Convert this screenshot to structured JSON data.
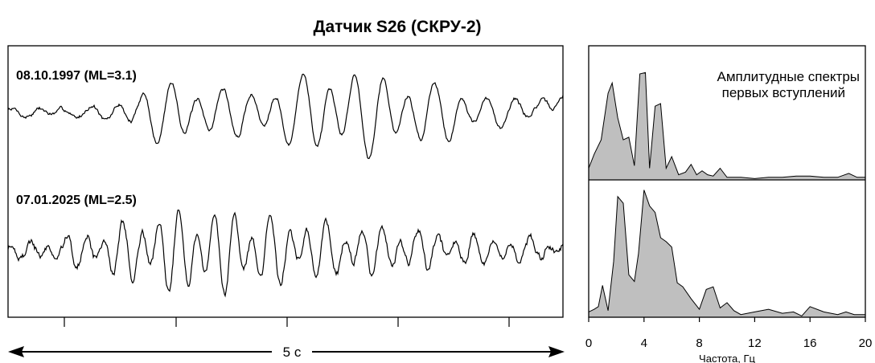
{
  "title": "Датчик S26 (СКРУ-2)",
  "waveform": {
    "traces": [
      {
        "label": "08.10.1997 (ML=3.1)"
      },
      {
        "label": "07.01.2025 (ML=2.5)"
      }
    ],
    "time_span_label": "5 с"
  },
  "chart_data": [
    {
      "type": "line",
      "title": "",
      "series": [
        {
          "name": "08.10.1997 (ML=3.1)"
        },
        {
          "name": "07.01.2025 (ML=2.5)"
        }
      ],
      "xlabel": "5 с",
      "ylabel": "",
      "grid": false
    },
    {
      "type": "area",
      "annotation": "Амплитудные спектры первых вступлений",
      "xlabel": "Частота, Гц",
      "ylabel": "",
      "xlim": [
        0,
        20
      ],
      "xticks": [
        0,
        4,
        8,
        12,
        16,
        20
      ],
      "ylim": [
        0,
        1
      ],
      "fill_color": "#bfbfbf",
      "series": [
        {
          "name": "08.10.1997 (ML=3.1)",
          "x": [
            0,
            0.4,
            0.9,
            1.4,
            1.7,
            2.1,
            2.5,
            2.9,
            3.3,
            3.7,
            4.1,
            4.4,
            4.8,
            5.2,
            5.6,
            6.0,
            6.5,
            7.0,
            7.4,
            7.8,
            8.2,
            8.6,
            9.0,
            9.5,
            10.0,
            10.5,
            11.0,
            12.0,
            13.0,
            14.0,
            15.0,
            16.0,
            17.0,
            18.0,
            18.8,
            19.4,
            20.0
          ],
          "y": [
            0.09,
            0.2,
            0.31,
            0.67,
            0.75,
            0.48,
            0.31,
            0.33,
            0.11,
            0.82,
            0.83,
            0.09,
            0.57,
            0.59,
            0.09,
            0.18,
            0.04,
            0.06,
            0.12,
            0.04,
            0.07,
            0.04,
            0.03,
            0.09,
            0.02,
            0.02,
            0.02,
            0.01,
            0.02,
            0.02,
            0.03,
            0.03,
            0.02,
            0.02,
            0.05,
            0.02,
            0.02
          ]
        },
        {
          "name": "07.01.2025 (ML=2.5)",
          "x": [
            0,
            0.4,
            0.7,
            1.0,
            1.4,
            1.8,
            2.1,
            2.5,
            2.9,
            3.3,
            3.6,
            4.0,
            4.4,
            4.8,
            5.2,
            5.6,
            6.0,
            6.4,
            6.8,
            7.4,
            8.0,
            8.5,
            9.0,
            9.5,
            10.0,
            10.5,
            11.0,
            12.0,
            13.0,
            14.0,
            14.8,
            15.4,
            16.0,
            17.0,
            18.0,
            18.6,
            19.2,
            20.0
          ],
          "y": [
            0.04,
            0.06,
            0.08,
            0.24,
            0.05,
            0.42,
            0.91,
            0.86,
            0.32,
            0.27,
            0.48,
            0.96,
            0.84,
            0.79,
            0.6,
            0.57,
            0.53,
            0.26,
            0.23,
            0.14,
            0.06,
            0.21,
            0.23,
            0.07,
            0.11,
            0.05,
            0.02,
            0.04,
            0.06,
            0.03,
            0.04,
            0.01,
            0.08,
            0.04,
            0.02,
            0.04,
            0.02,
            0.02
          ]
        }
      ]
    }
  ]
}
